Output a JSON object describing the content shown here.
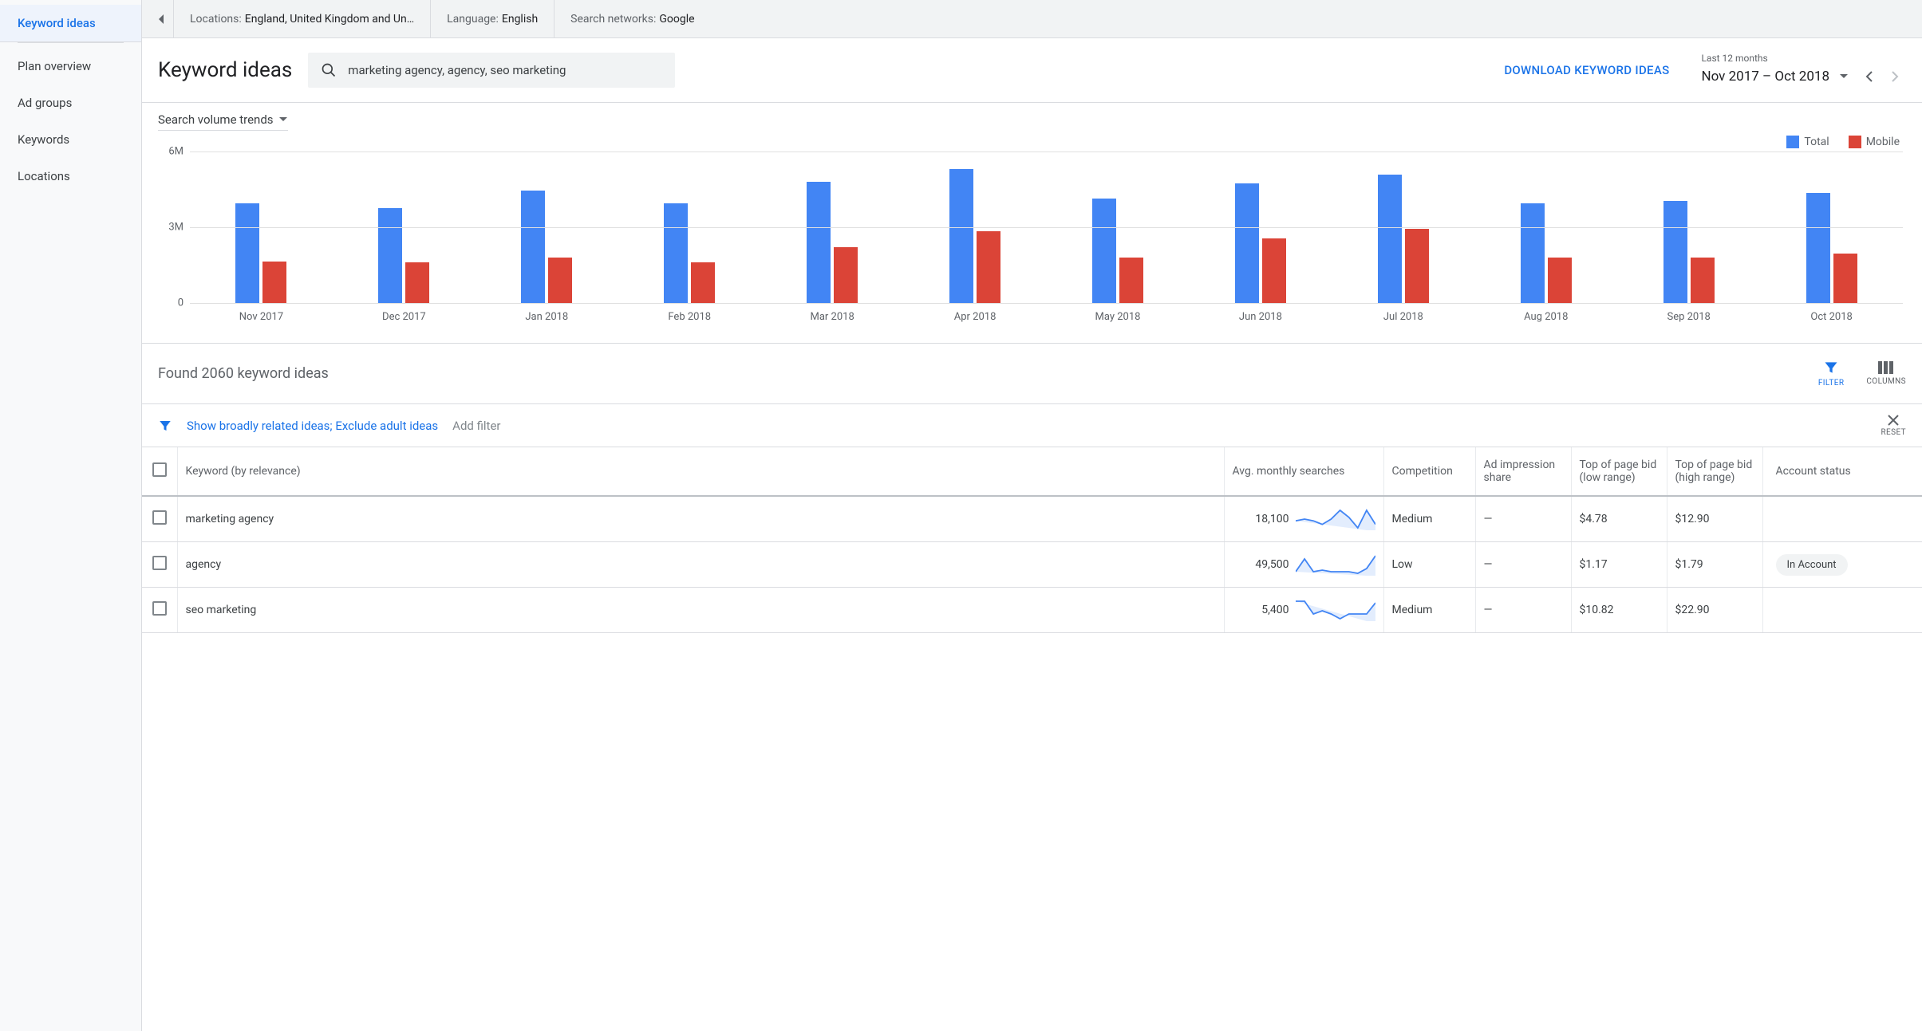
{
  "sidebar": {
    "items": [
      {
        "label": "Keyword ideas",
        "active": true
      },
      {
        "label": "Plan overview",
        "active": false
      },
      {
        "label": "Ad groups",
        "active": false
      },
      {
        "label": "Keywords",
        "active": false
      },
      {
        "label": "Locations",
        "active": false
      }
    ]
  },
  "contextBar": {
    "locationsLabel": "Locations:",
    "locationsValue": "England, United Kingdom and Un…",
    "languageLabel": "Language:",
    "languageValue": "English",
    "networksLabel": "Search networks:",
    "networksValue": "Google"
  },
  "header": {
    "title": "Keyword ideas",
    "searchText": "marketing agency, agency, seo marketing",
    "downloadLabel": "DOWNLOAD KEYWORD IDEAS",
    "dateRangeLabel": "Last 12 months",
    "dateRangeValue": "Nov 2017 – Oct 2018"
  },
  "chart": {
    "dropdownLabel": "Search volume trends",
    "legend": {
      "total": "Total",
      "mobile": "Mobile"
    },
    "colors": {
      "total": "#4285f4",
      "mobile": "#db4437",
      "grid": "#e0e0e0",
      "axisText": "#5f6368"
    },
    "yMax": 6,
    "yTicks": [
      {
        "label": "6M",
        "value": 6
      },
      {
        "label": "3M",
        "value": 3
      },
      {
        "label": "0",
        "value": 0
      }
    ],
    "months": [
      {
        "label": "Nov 2017",
        "total": 3.95,
        "mobile": 1.65
      },
      {
        "label": "Dec 2017",
        "total": 3.75,
        "mobile": 1.6
      },
      {
        "label": "Jan 2018",
        "total": 4.45,
        "mobile": 1.8
      },
      {
        "label": "Feb 2018",
        "total": 3.95,
        "mobile": 1.6
      },
      {
        "label": "Mar 2018",
        "total": 4.8,
        "mobile": 2.2
      },
      {
        "label": "Apr 2018",
        "total": 5.3,
        "mobile": 2.85
      },
      {
        "label": "May 2018",
        "total": 4.15,
        "mobile": 1.8
      },
      {
        "label": "Jun 2018",
        "total": 4.75,
        "mobile": 2.55
      },
      {
        "label": "Jul 2018",
        "total": 5.1,
        "mobile": 2.95
      },
      {
        "label": "Aug 2018",
        "total": 3.95,
        "mobile": 1.8
      },
      {
        "label": "Sep 2018",
        "total": 4.05,
        "mobile": 1.8
      },
      {
        "label": "Oct 2018",
        "total": 4.35,
        "mobile": 1.95
      }
    ]
  },
  "results": {
    "summary": "Found 2060 keyword ideas",
    "filterLabel": "FILTER",
    "columnsLabel": "COLUMNS",
    "filterText": "Show broadly related ideas; Exclude adult ideas",
    "addFilterText": "Add filter",
    "resetLabel": "RESET",
    "columns": {
      "keyword": "Keyword (by relevance)",
      "searches": "Avg. monthly searches",
      "competition": "Competition",
      "impressionShare": "Ad impression share",
      "bidLow": "Top of page bid (low range)",
      "bidHigh": "Top of page bid (high range)",
      "accountStatus": "Account status"
    },
    "rows": [
      {
        "keyword": "marketing agency",
        "searches": "18,100",
        "competition": "Medium",
        "impressionShare": "—",
        "bidLow": "$4.78",
        "bidHigh": "$12.90",
        "status": "",
        "spark": [
          12,
          13,
          12,
          10,
          13,
          18,
          14,
          8,
          18,
          10
        ]
      },
      {
        "keyword": "agency",
        "searches": "49,500",
        "competition": "Low",
        "impressionShare": "—",
        "bidLow": "$1.17",
        "bidHigh": "$1.79",
        "status": "In Account",
        "spark": [
          10,
          18,
          10,
          11,
          10,
          10,
          10,
          9,
          12,
          20
        ]
      },
      {
        "keyword": "seo marketing",
        "searches": "5,400",
        "competition": "Medium",
        "impressionShare": "—",
        "bidLow": "$10.82",
        "bidHigh": "$22.90",
        "status": "",
        "spark": [
          18,
          18,
          10,
          12,
          10,
          7,
          10,
          10,
          10,
          17
        ]
      }
    ],
    "sparkColor": "#4285f4"
  }
}
